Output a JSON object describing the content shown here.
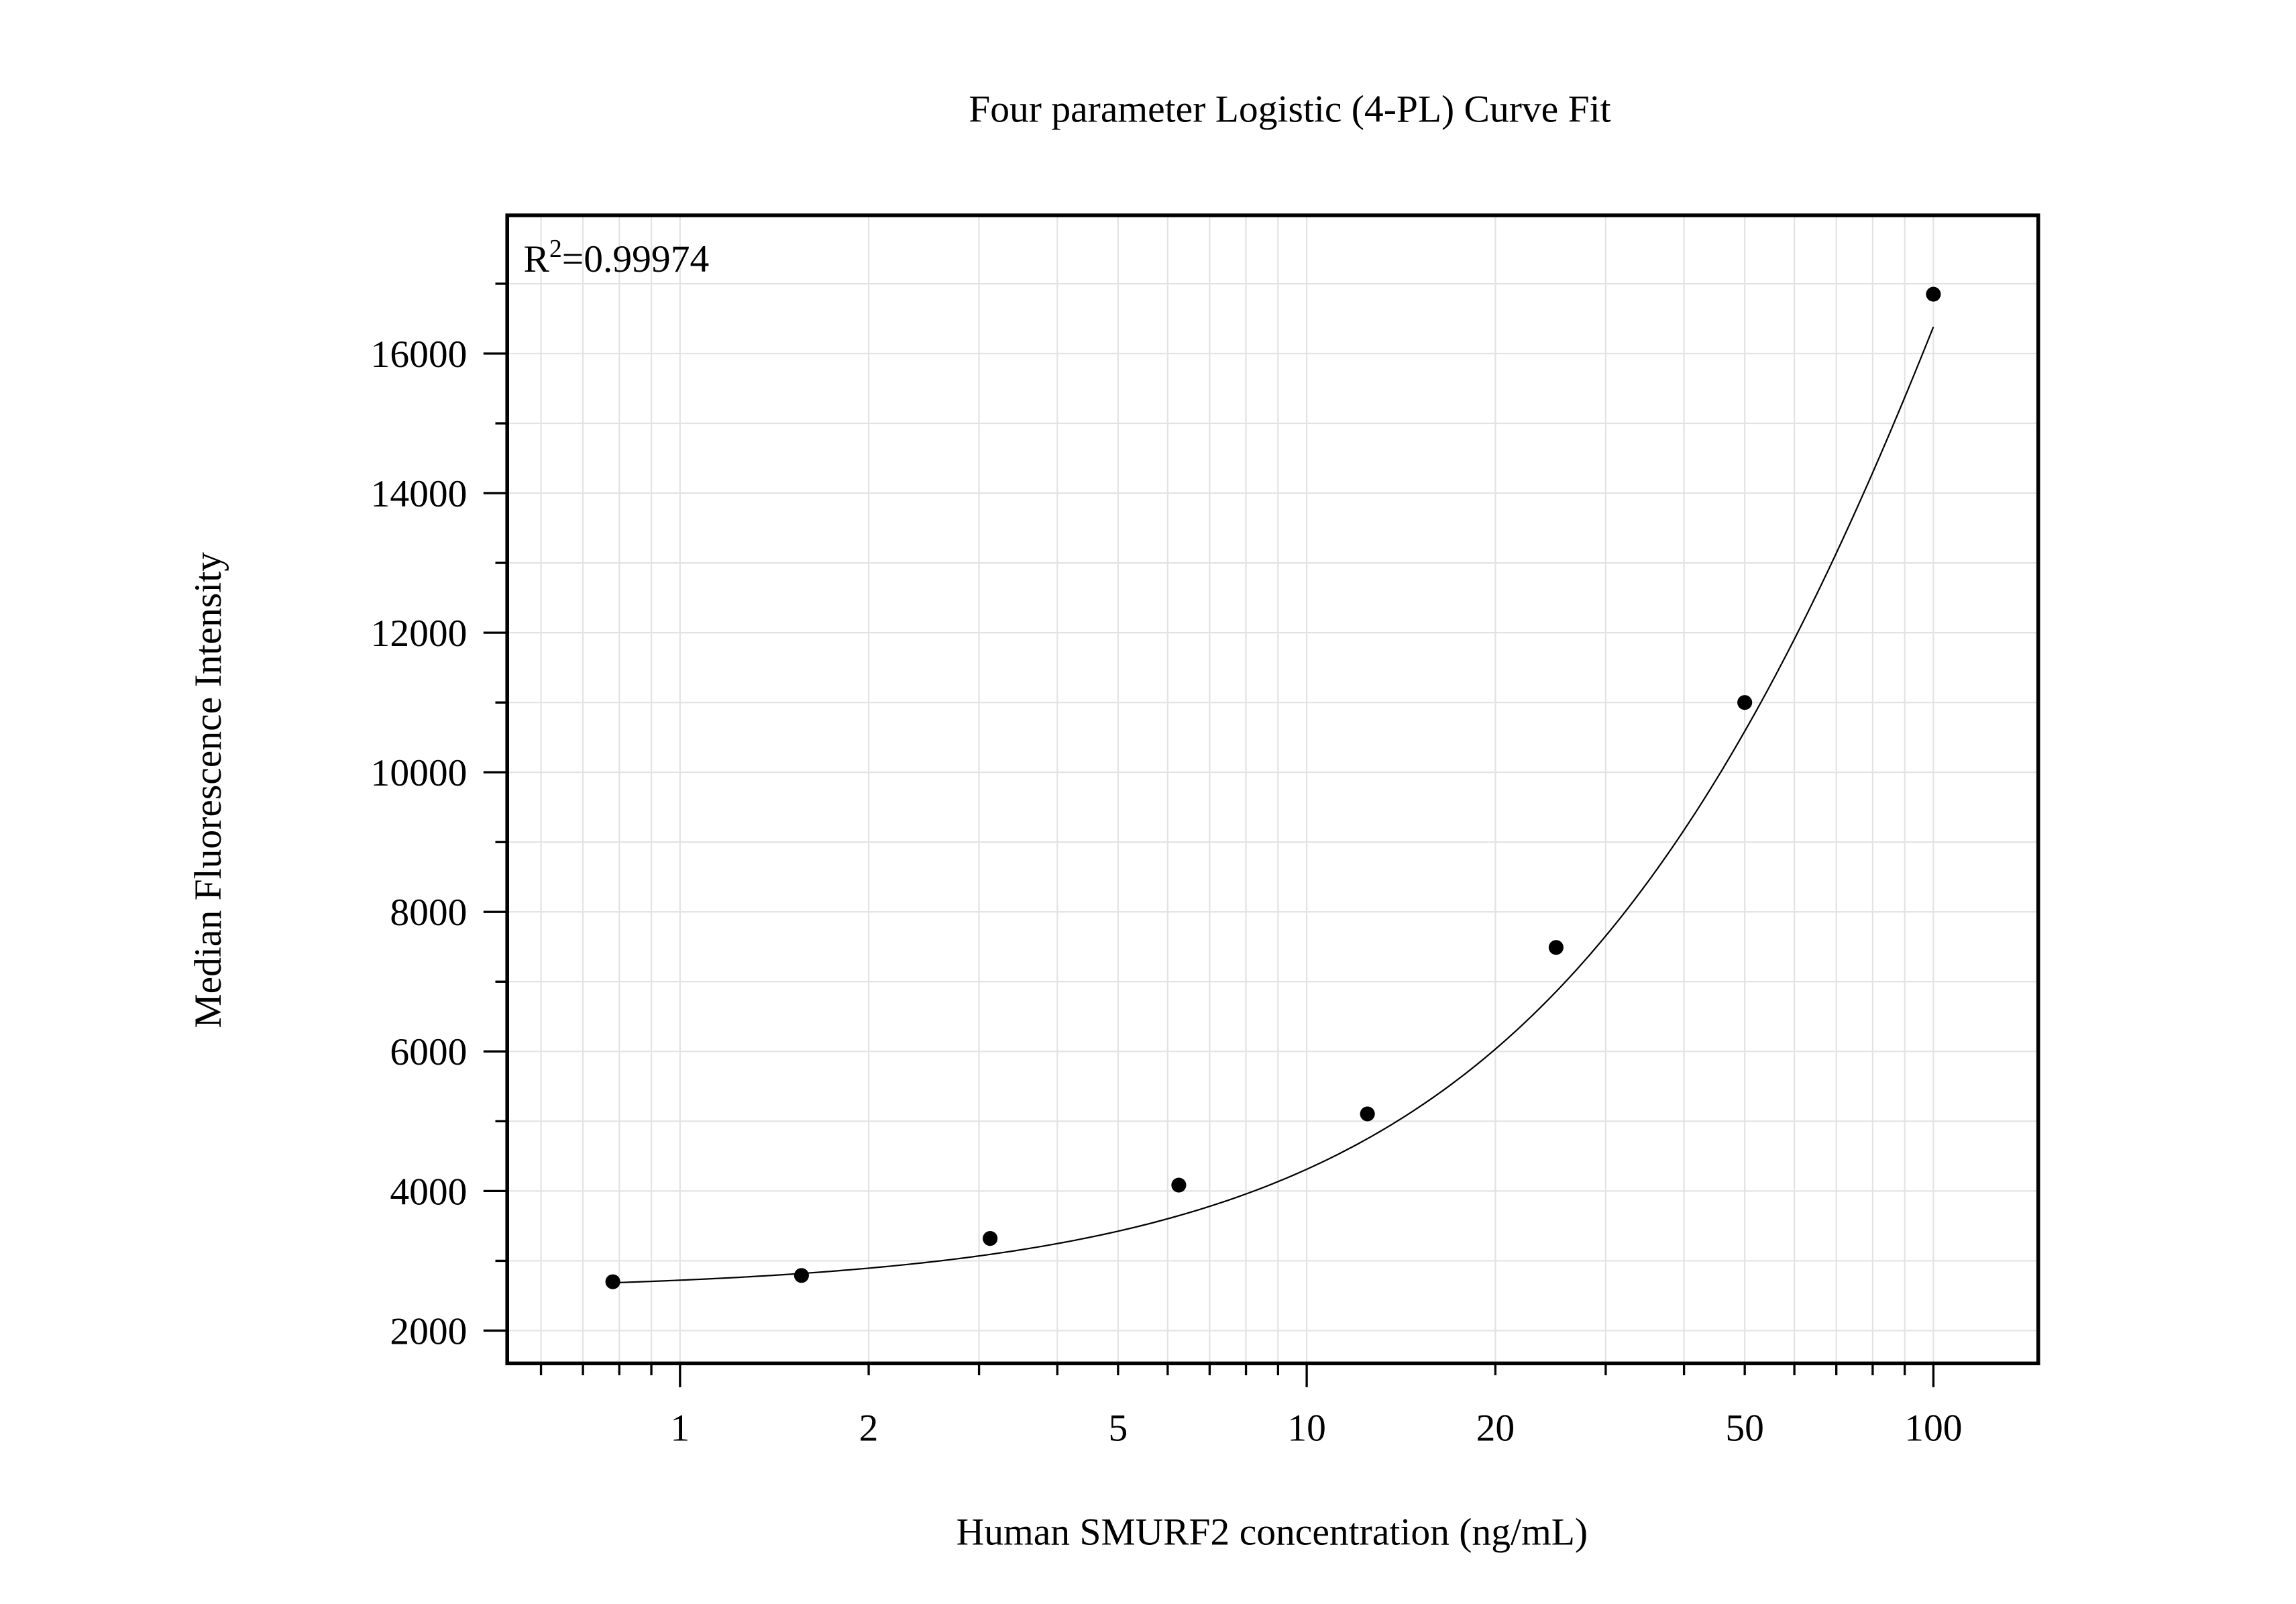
{
  "chart_data": {
    "type": "scatter",
    "title": "Four parameter Logistic (4-PL) Curve Fit",
    "xlabel": "Human SMURF2 concentration (ng/mL)",
    "ylabel": "Median Fluorescence Intensity",
    "x_scale": "log",
    "xlim": [
      0.53,
      147
    ],
    "ylim": [
      1530,
      17980
    ],
    "x_ticks": [
      1,
      2,
      5,
      10,
      20,
      50,
      100
    ],
    "x_tick_labels": [
      "1",
      "2",
      "5",
      "10",
      "20",
      "50",
      "100"
    ],
    "y_ticks": [
      2000,
      4000,
      6000,
      8000,
      10000,
      12000,
      14000,
      16000
    ],
    "y_tick_labels": [
      "2000",
      "4000",
      "6000",
      "8000",
      "10000",
      "12000",
      "14000",
      "16000"
    ],
    "grid": true,
    "annotation": {
      "prefix": "R",
      "sup": "2",
      "value": "=0.99974"
    },
    "series": [
      {
        "x": [
          0.78125,
          1.5625,
          3.125,
          6.25,
          12.5,
          25,
          50,
          100
        ],
        "y": [
          2700,
          2790,
          3320,
          4085,
          5105,
          7490,
          11000,
          16850
        ],
        "marker_color": "#000000",
        "fit": "4-PL curve",
        "line_color": "#000000"
      }
    ]
  }
}
